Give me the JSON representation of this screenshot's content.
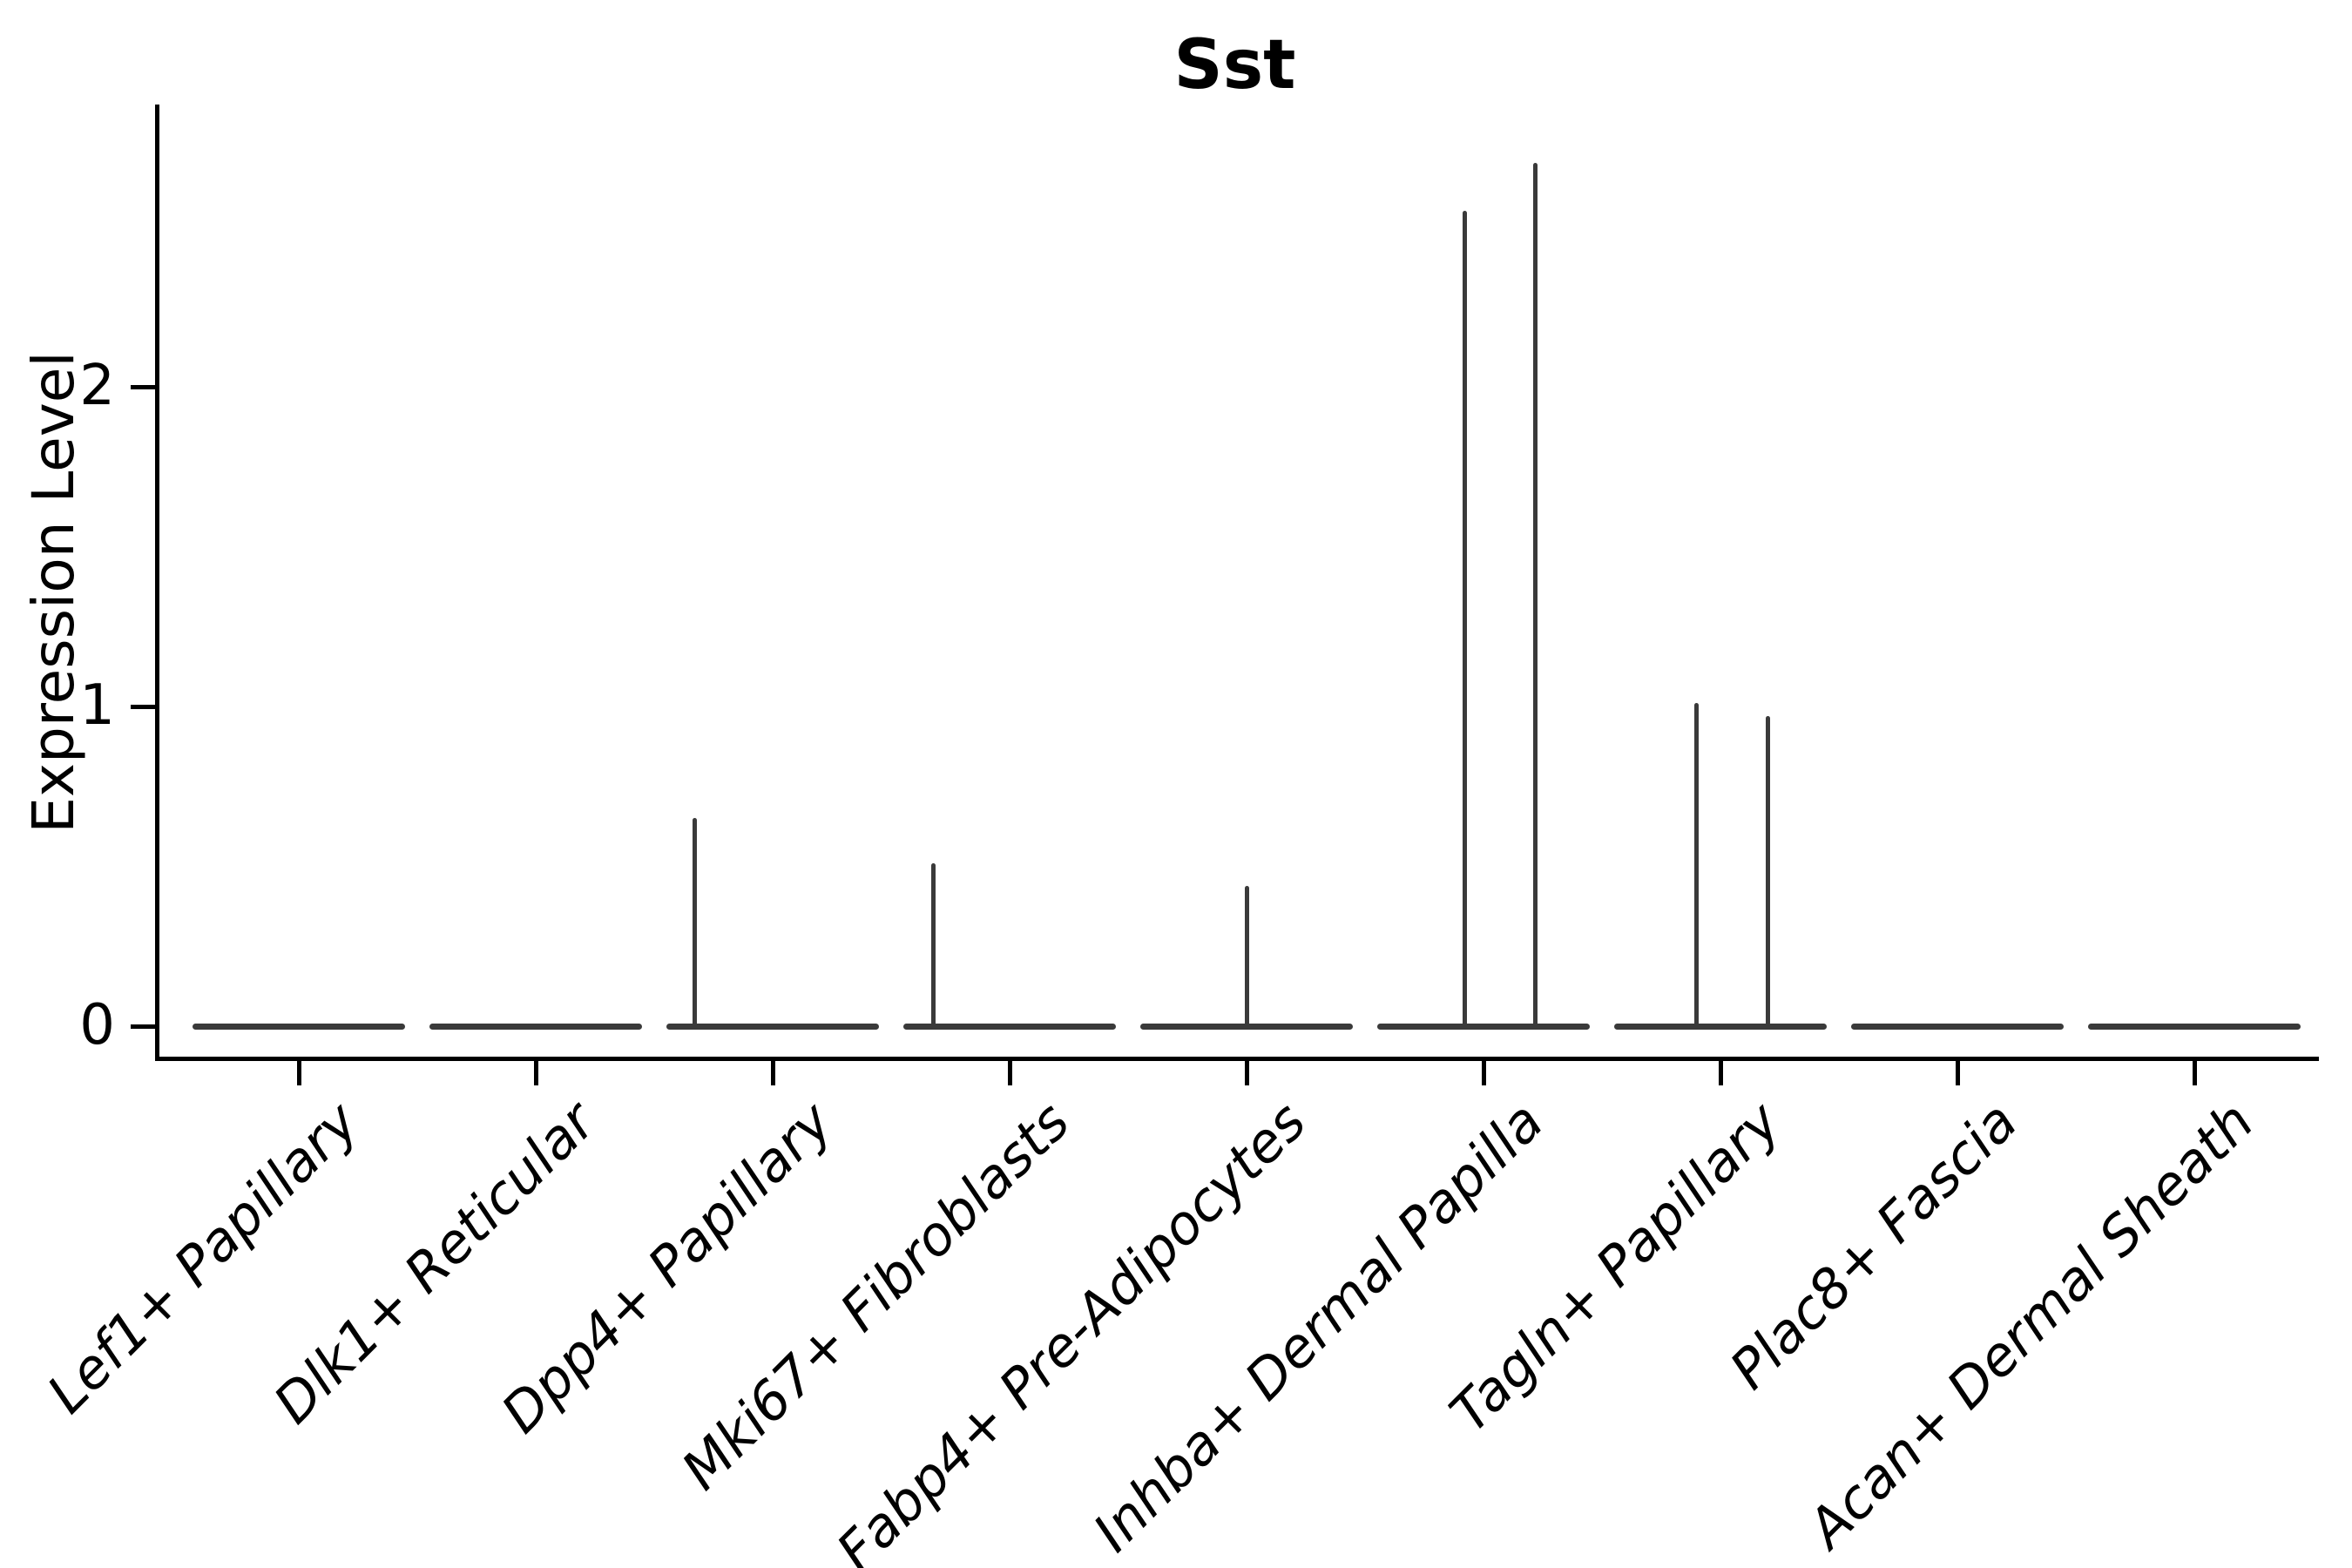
{
  "figure": {
    "title": "Sst"
  },
  "axes": {
    "ylabel": "Expression Level",
    "ytick_labels": [
      "0",
      "1",
      "2"
    ]
  },
  "chart_data": {
    "type": "violin",
    "title": "Sst",
    "xlabel": "",
    "ylabel": "Expression Level",
    "yticks": [
      0,
      1,
      2
    ],
    "ylim": [
      -0.1,
      2.88
    ],
    "grid": false,
    "legend": "none",
    "line_color": "#3a3a3a",
    "axis_color": "#000000",
    "categories": [
      "Lef1+ Papillary",
      "Dlk1+ Reticular",
      "Dpp4+ Papillary",
      "Mki67+ Fibroblasts",
      "Fabp4+ Pre-Adipocytes",
      "Inhba+ Dermal Papilla",
      "Tagln+ Papillary",
      "Plac8+ Fascia",
      "Acan+ Dermal Sheath"
    ],
    "violins": [
      {
        "category": "Lef1+ Papillary",
        "body_value": 0,
        "body_halfwidth": 0.45,
        "spikes": []
      },
      {
        "category": "Dlk1+ Reticular",
        "body_value": 0,
        "body_halfwidth": 0.45,
        "spikes": []
      },
      {
        "category": "Dpp4+ Papillary",
        "body_value": 0,
        "body_halfwidth": 0.45,
        "spikes": [
          {
            "value": 0.65,
            "x_offset": -0.33
          }
        ]
      },
      {
        "category": "Mki67+ Fibroblasts",
        "body_value": 0,
        "body_halfwidth": 0.45,
        "spikes": [
          {
            "value": 0.51,
            "x_offset": -0.32
          }
        ]
      },
      {
        "category": "Fabp4+ Pre-Adipocytes",
        "body_value": 0,
        "body_halfwidth": 0.45,
        "spikes": [
          {
            "value": 0.44,
            "x_offset": 0.0
          }
        ]
      },
      {
        "category": "Inhba+ Dermal Papilla",
        "body_value": 0,
        "body_halfwidth": 0.45,
        "spikes": [
          {
            "value": 2.55,
            "x_offset": -0.08
          },
          {
            "value": 2.7,
            "x_offset": 0.22
          }
        ]
      },
      {
        "category": "Tagln+ Papillary",
        "body_value": 0,
        "body_halfwidth": 0.45,
        "spikes": [
          {
            "value": 1.01,
            "x_offset": -0.1
          },
          {
            "value": 0.97,
            "x_offset": 0.2
          }
        ]
      },
      {
        "category": "Plac8+ Fascia",
        "body_value": 0,
        "body_halfwidth": 0.45,
        "spikes": []
      },
      {
        "category": "Acan+ Dermal Sheath",
        "body_value": 0,
        "body_halfwidth": 0.45,
        "spikes": []
      }
    ]
  }
}
